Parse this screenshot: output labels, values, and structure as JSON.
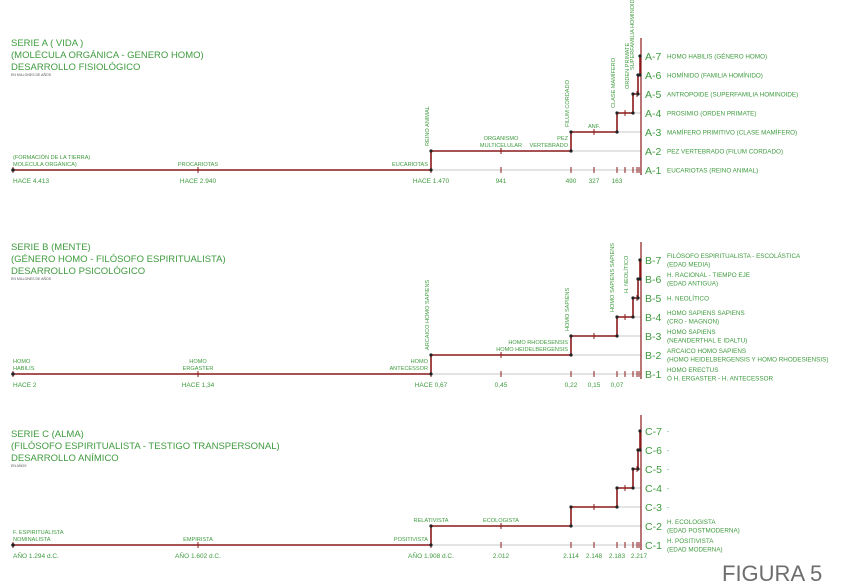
{
  "figure_label": "FIGURA 5",
  "colors": {
    "text": "#3f9b3f",
    "path": "#8b1a1a",
    "guide": "#c8c8c8",
    "node": "#222222"
  },
  "series": [
    {
      "id": "A",
      "title_lines": [
        "SERIE A ( VIDA )",
        "(MOLÉCULA ORGÁNICA - GENERO HOMO)",
        "DESARROLLO FISIOLÓGICO"
      ],
      "unit": "EN MILLONES DE AÑOS",
      "axis_labels": [
        "HACE 4.413",
        "HACE 2.940",
        "HACE 1.470",
        "941",
        "490",
        "327",
        "163"
      ],
      "stage_labels": [
        [
          "(FORMACIÓN DE LA TIERRA)",
          "MOLÉCULA ORGÁNICA)"
        ],
        [
          "PROCARIOTAS"
        ],
        [
          "EUCARIOTAS"
        ],
        [
          "ORGANISMO",
          "MULTICELULAR"
        ],
        [
          "PEZ",
          "VERTEBRADO"
        ],
        [
          "ANF."
        ]
      ],
      "vertical_labels": [
        "REINO ANIMAL",
        "FILUM CORDADO",
        "CLASE MAMÍFERO",
        "ORDEN PRIMATE",
        "SUPERFAMILIA HOMINOIDE"
      ],
      "levels": [
        {
          "code": "A-1",
          "description": [
            "EUCARIOTAS (REINO ANIMAL)"
          ]
        },
        {
          "code": "A-2",
          "description": [
            "PEZ VERTEBRADO (FILUM CORDADO)"
          ]
        },
        {
          "code": "A-3",
          "description": [
            "MAMÍFERO PRIMITIVO (CLASE MAMÍFERO)"
          ]
        },
        {
          "code": "A-4",
          "description": [
            "PROSIMIO (ORDEN PRIMATE)"
          ]
        },
        {
          "code": "A-5",
          "description": [
            "ANTROPOIDE (SUPERFAMILIA HOMINOIDE)"
          ]
        },
        {
          "code": "A-6",
          "description": [
            "HOMÍNIDO (FAMILIA HOMÍNIDO)"
          ]
        },
        {
          "code": "A-7",
          "description": [
            "HOMO HABILIS (GÉNERO HOMO)"
          ]
        }
      ]
    },
    {
      "id": "B",
      "title_lines": [
        "SERIE B (MENTE)",
        "(GÉNERO HOMO - FILÓSOFO ESPIRITUALISTA)",
        "DESARROLLO PSICOLÓGICO"
      ],
      "unit": "EN MILLONES DE AÑOS",
      "axis_labels": [
        "HACE 2",
        "HACE 1,34",
        "HACE 0,67",
        "0,45",
        "0,22",
        "0,15",
        "0,07"
      ],
      "stage_labels": [
        [
          "HOMO",
          "HABILIS"
        ],
        [
          "HOMO",
          "ERGASTER"
        ],
        [
          "HOMO",
          "ANTECESSOR"
        ],
        [
          "HOMO RHODESENSIS",
          "HOMO HEIDELBERGENSIS"
        ]
      ],
      "vertical_labels": [
        "ARCAICO HOMO SAPIENS",
        "HOMO SAPIENS",
        "HOMO SAPIENS SAPIENS",
        "H. NEOLÍTICO"
      ],
      "levels": [
        {
          "code": "B-1",
          "description": [
            "HOMO ERECTUS",
            "Ó H. ERGASTER - H. ANTECESSOR"
          ]
        },
        {
          "code": "B-2",
          "description": [
            "ARCAICO HOMO SAPIENS",
            "(HOMO HEIDELBERGENSIS Y HOMO RHODESIENSIS)"
          ]
        },
        {
          "code": "B-3",
          "description": [
            "HOMO SAPIENS",
            "(NEANDERTHAL E IDALTU)"
          ]
        },
        {
          "code": "B-4",
          "description": [
            "HOMO SAPIENS SAPIENS",
            "(CRO - MAGNON)"
          ]
        },
        {
          "code": "B-5",
          "description": [
            "H. NEOLÍTICO"
          ]
        },
        {
          "code": "B-6",
          "description": [
            "H. RACIONAL - TIEMPO EJE",
            "(EDAD ANTIGUA)"
          ]
        },
        {
          "code": "B-7",
          "description": [
            "FILÓSOFO ESPIRITUALISTA - ESCOLÁSTICA",
            "(EDAD MEDIA)"
          ]
        }
      ]
    },
    {
      "id": "C",
      "title_lines": [
        "SERIE C (ALMA)",
        "(FILÓSOFO ESPIRITUALISTA - TESTIGO TRANSPERSONAL)",
        "DESARROLLO ANÍMICO"
      ],
      "unit": "EN AÑOS",
      "axis_labels": [
        "AÑO 1.294 d.C.",
        "AÑO 1.602 d.C.",
        "AÑO 1.908 d.C.",
        "2.012",
        "2.114",
        "2.148",
        "2.183",
        "2.217"
      ],
      "stage_labels": [
        [
          "F. ESPIRITUALISTA",
          "NOMINALISTA"
        ],
        [
          "EMPIRISTA"
        ],
        [
          "POSITIVISTA"
        ],
        [
          "RELATIVISTA"
        ],
        [
          "ECOLOGISTA"
        ]
      ],
      "vertical_labels": [],
      "levels": [
        {
          "code": "C-1",
          "description": [
            "H. POSITIVISTA",
            "(EDAD MODERNA)"
          ]
        },
        {
          "code": "C-2",
          "description": [
            "H. ECOLOGISTA",
            "(EDAD POSTMODERNA)"
          ]
        },
        {
          "code": "C-3",
          "description": [
            "-"
          ]
        },
        {
          "code": "C-4",
          "description": [
            "-"
          ]
        },
        {
          "code": "C-5",
          "description": [
            "-"
          ]
        },
        {
          "code": "C-6",
          "description": [
            "-"
          ]
        },
        {
          "code": "C-7",
          "description": [
            "-"
          ]
        }
      ]
    }
  ]
}
